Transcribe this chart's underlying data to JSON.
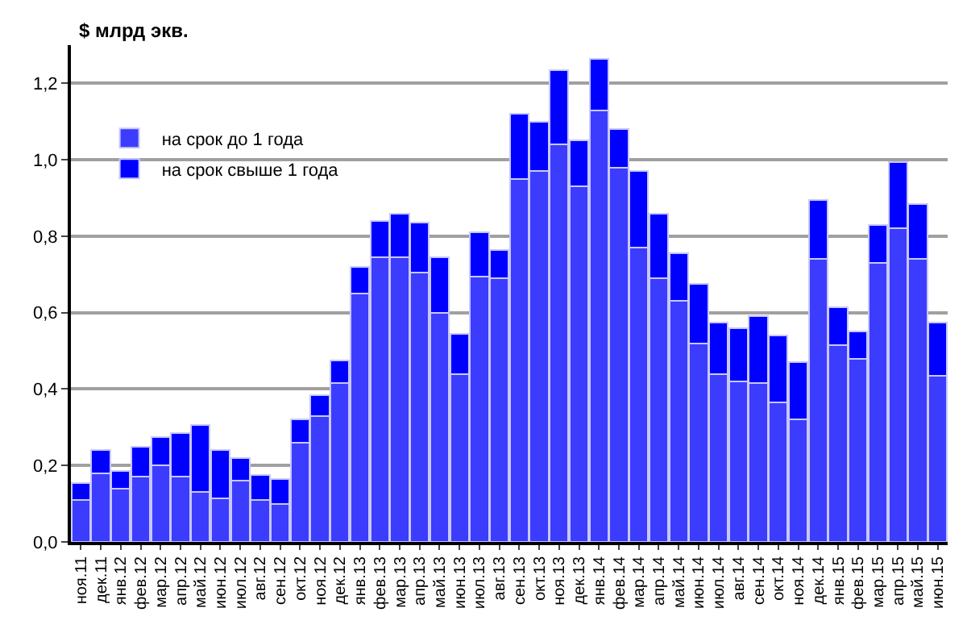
{
  "chart_data": {
    "type": "bar",
    "stacked": true,
    "ylabel": "$ млрд экв.",
    "categories": [
      "ноя.11",
      "дек.11",
      "янв.12",
      "фев.12",
      "мар.12",
      "апр.12",
      "май.12",
      "июн.12",
      "июл.12",
      "авг.12",
      "сен.12",
      "окт.12",
      "ноя.12",
      "дек.12",
      "янв.13",
      "фев.13",
      "мар.13",
      "апр.13",
      "май.13",
      "июн.13",
      "июл.13",
      "авг.13",
      "сен.13",
      "окт.13",
      "ноя.13",
      "дек.13",
      "янв.14",
      "фев.14",
      "мар.14",
      "апр.14",
      "май.14",
      "июн.14",
      "июл.14",
      "авг.14",
      "сен.14",
      "окт.14",
      "ноя.14",
      "дек.14",
      "янв.15",
      "фев.15",
      "мар.15",
      "апр.15",
      "май.15",
      "июн.15"
    ],
    "series": [
      {
        "name": "на срок до 1 года",
        "color": "#3c3cff",
        "values": [
          0.11,
          0.18,
          0.14,
          0.17,
          0.2,
          0.17,
          0.13,
          0.115,
          0.16,
          0.11,
          0.1,
          0.26,
          0.33,
          0.415,
          0.65,
          0.745,
          0.745,
          0.705,
          0.6,
          0.44,
          0.695,
          0.69,
          0.95,
          0.97,
          1.04,
          0.93,
          1.13,
          0.98,
          0.77,
          0.69,
          0.63,
          0.52,
          0.44,
          0.42,
          0.415,
          0.365,
          0.32,
          0.74,
          0.515,
          0.48,
          0.73,
          0.82,
          0.74,
          0.435
        ]
      },
      {
        "name": "на срок свыше 1 года",
        "color": "#0000ff",
        "values": [
          0.045,
          0.06,
          0.045,
          0.08,
          0.075,
          0.115,
          0.175,
          0.125,
          0.06,
          0.065,
          0.065,
          0.06,
          0.055,
          0.06,
          0.07,
          0.095,
          0.115,
          0.13,
          0.145,
          0.105,
          0.115,
          0.075,
          0.17,
          0.13,
          0.195,
          0.12,
          0.135,
          0.1,
          0.2,
          0.17,
          0.125,
          0.155,
          0.135,
          0.14,
          0.175,
          0.175,
          0.15,
          0.155,
          0.1,
          0.07,
          0.1,
          0.175,
          0.145,
          0.14
        ]
      }
    ],
    "ylim": [
      0,
      1.3
    ],
    "yticks": [
      {
        "value": 0,
        "label": "0,0"
      },
      {
        "value": 0.2,
        "label": "0,2"
      },
      {
        "value": 0.4,
        "label": "0,4"
      },
      {
        "value": 0.6,
        "label": "0,6"
      },
      {
        "value": 0.8,
        "label": "0,8"
      },
      {
        "value": 1,
        "label": "1,0"
      },
      {
        "value": 1.2,
        "label": "1,2"
      }
    ],
    "grid": "y",
    "legend": "top left"
  }
}
